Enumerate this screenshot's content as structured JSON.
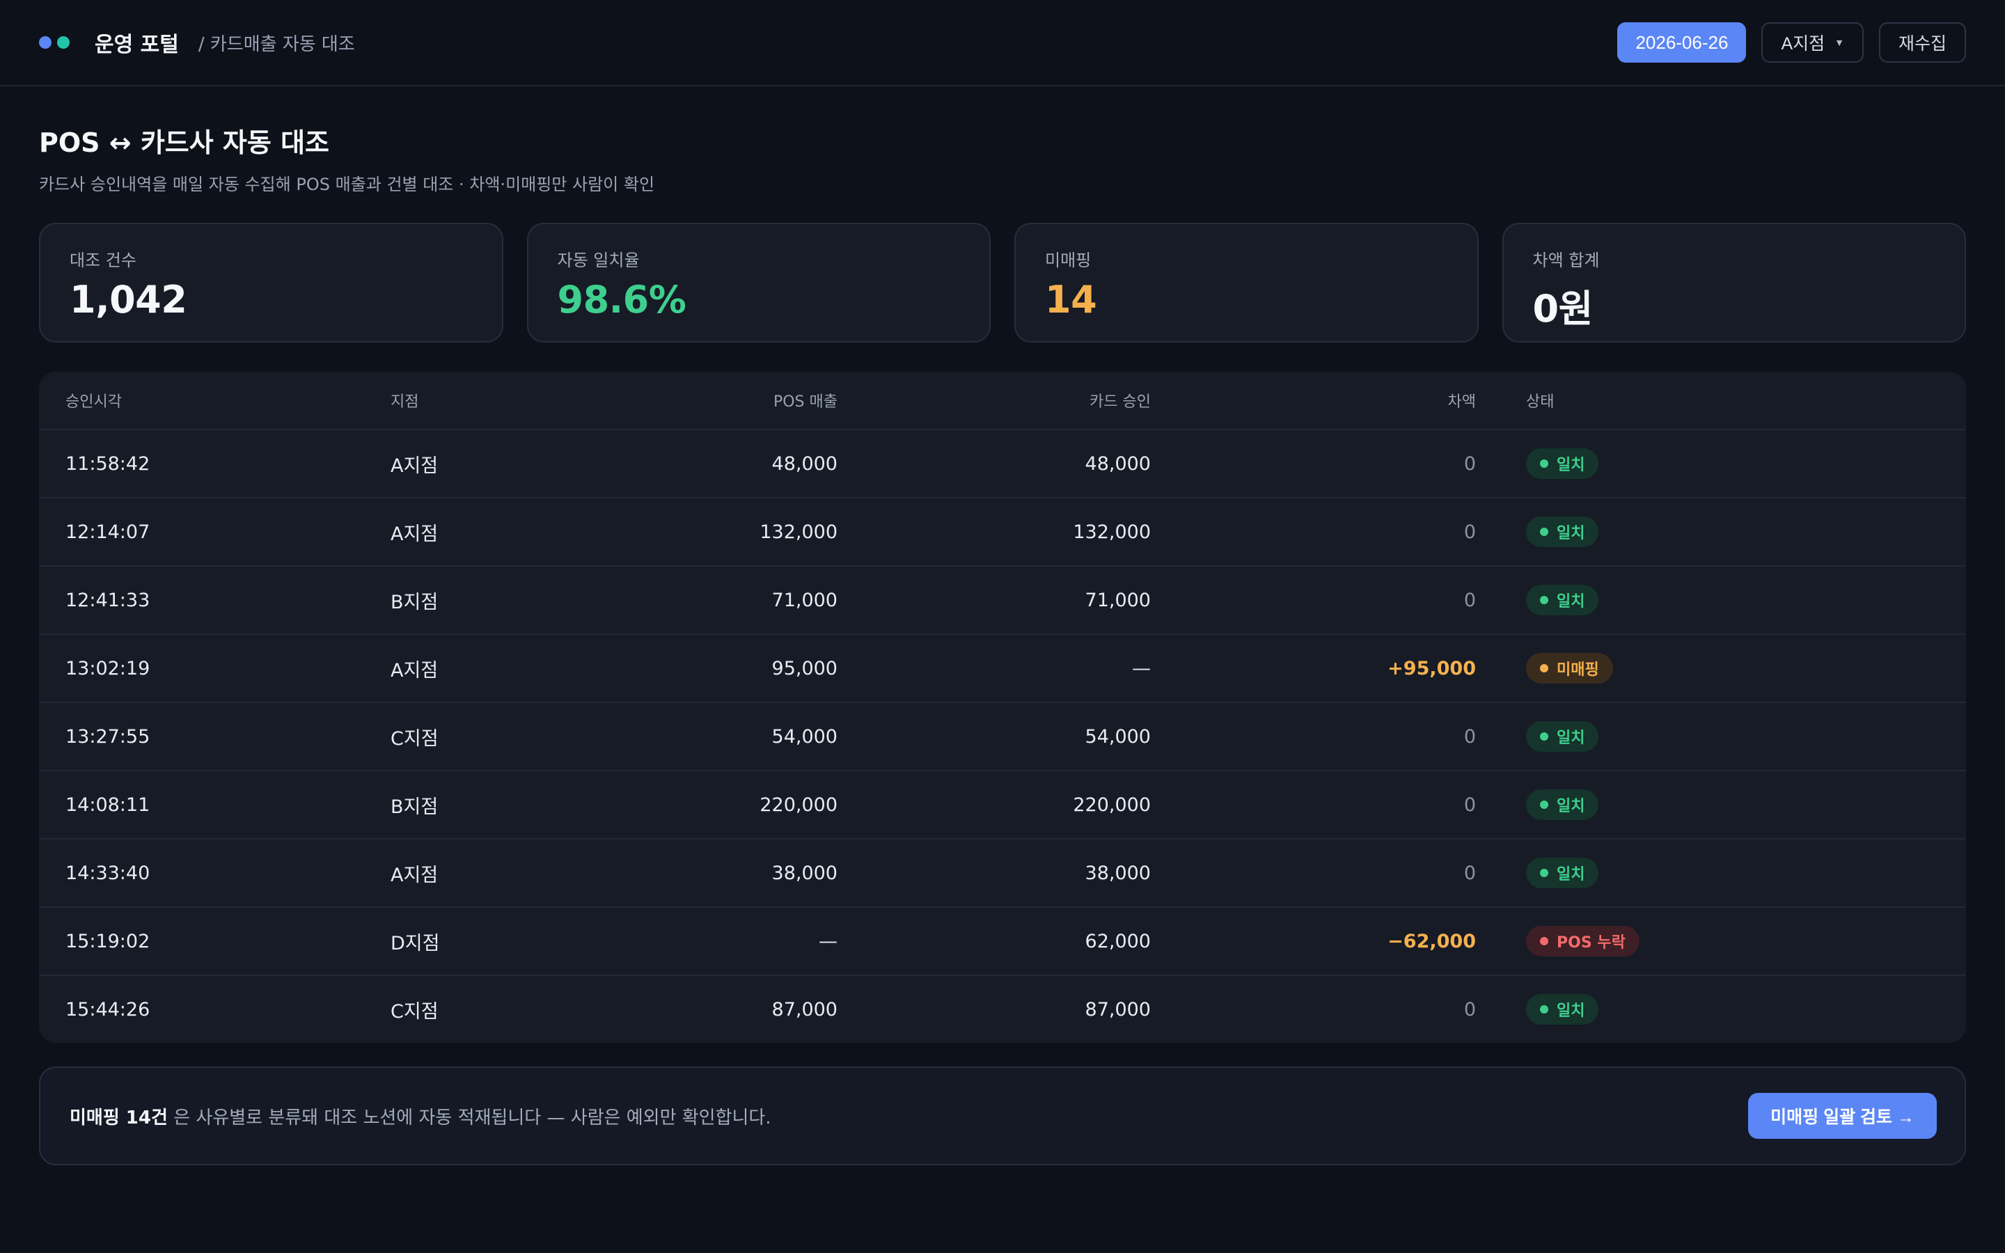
{
  "colors": {
    "accent": "#5b86f5",
    "dot_blue": "#5b86f5",
    "dot_teal": "#22c3a6",
    "match_green": "#3ecf8e",
    "warn_orange": "#f5b04e",
    "error_red": "#f36b6b"
  },
  "header": {
    "brand": "운영 포털",
    "breadcrumb": "/ 카드매출 자동 대조",
    "date": "2026-06-26",
    "branch_select": "A지점",
    "branch_caret_icon": "caret-down-icon",
    "refetch_label": "재수집"
  },
  "page": {
    "title": "POS ↔ 카드사 자동 대조",
    "subtitle": "카드사 승인내역을 매일 자동 수집해 POS 매출과 건별 대조 · 차액·미매핑만 사람이 확인"
  },
  "kpis": [
    {
      "label": "대조 건수",
      "value": "1,042",
      "color": "#f5f7fa"
    },
    {
      "label": "자동 일치율",
      "value": "98.6%",
      "color": "#3ecf8e"
    },
    {
      "label": "미매핑",
      "value": "14",
      "color": "#f5b04e"
    },
    {
      "label": "차액 합계",
      "value": "0원",
      "color": "#f5f7fa"
    }
  ],
  "table": {
    "headers": {
      "time": "승인시각",
      "branch": "지점",
      "pos": "POS 매출",
      "card": "카드 승인",
      "diff": "차액",
      "status": "상태"
    },
    "rows": [
      {
        "time": "11:58:42",
        "branch": "A지점",
        "pos": "48,000",
        "card": "48,000",
        "diff": "0",
        "status": "일치",
        "kind": "ok"
      },
      {
        "time": "12:14:07",
        "branch": "A지점",
        "pos": "132,000",
        "card": "132,000",
        "diff": "0",
        "status": "일치",
        "kind": "ok"
      },
      {
        "time": "12:41:33",
        "branch": "B지점",
        "pos": "71,000",
        "card": "71,000",
        "diff": "0",
        "status": "일치",
        "kind": "ok"
      },
      {
        "time": "13:02:19",
        "branch": "A지점",
        "pos": "95,000",
        "card": "—",
        "diff": "+95,000",
        "status": "미매핑",
        "kind": "warn"
      },
      {
        "time": "13:27:55",
        "branch": "C지점",
        "pos": "54,000",
        "card": "54,000",
        "diff": "0",
        "status": "일치",
        "kind": "ok"
      },
      {
        "time": "14:08:11",
        "branch": "B지점",
        "pos": "220,000",
        "card": "220,000",
        "diff": "0",
        "status": "일치",
        "kind": "ok"
      },
      {
        "time": "14:33:40",
        "branch": "A지점",
        "pos": "38,000",
        "card": "38,000",
        "diff": "0",
        "status": "일치",
        "kind": "ok"
      },
      {
        "time": "15:19:02",
        "branch": "D지점",
        "pos": "—",
        "card": "62,000",
        "diff": "−62,000",
        "status": "POS 누락",
        "kind": "err"
      },
      {
        "time": "15:44:26",
        "branch": "C지점",
        "pos": "87,000",
        "card": "87,000",
        "diff": "0",
        "status": "일치",
        "kind": "ok"
      }
    ]
  },
  "footer": {
    "highlight": "미매핑 14건",
    "text": " 은 사유별로 분류돼 대조 노션에 자동 적재됩니다 — 사람은 예외만 확인합니다.",
    "button_label": "미매핑 일괄 검토 →"
  }
}
